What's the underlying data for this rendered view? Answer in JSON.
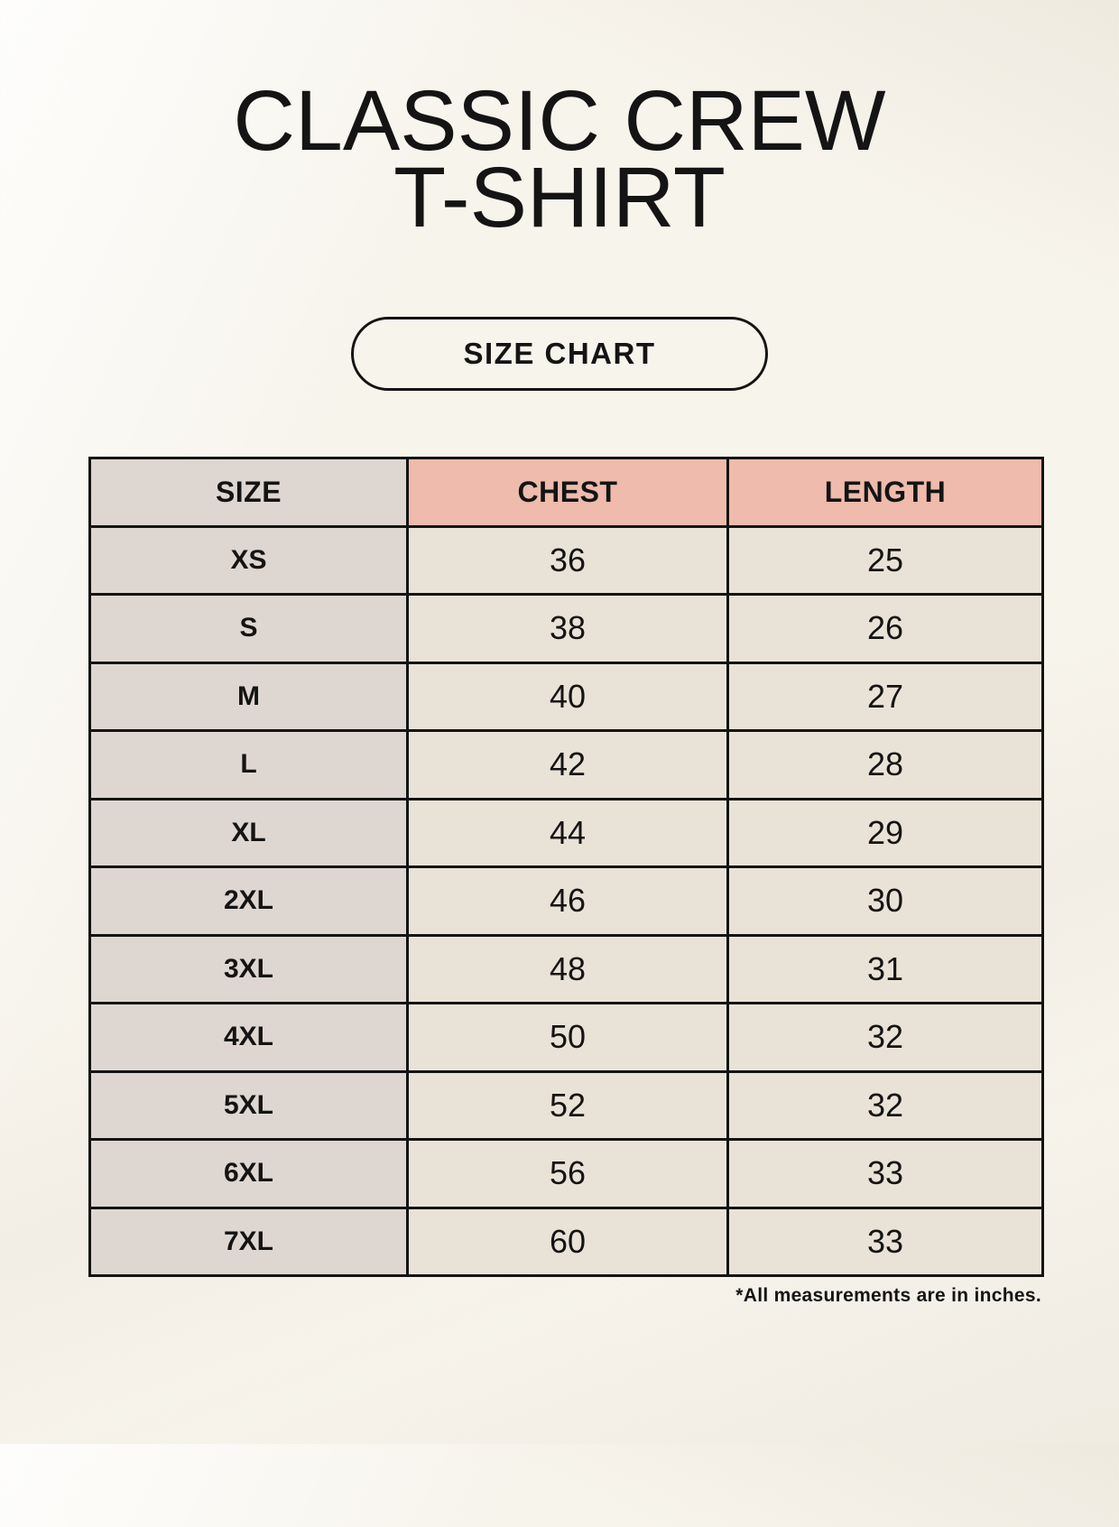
{
  "header": {
    "title_line1": "CLASSIC CREW",
    "title_line2": "T-SHIRT",
    "badge_label": "SIZE CHART"
  },
  "footnote": "*All measurements are in inches.",
  "colors": {
    "page_bg": "#f7f4ec",
    "accent_header_bg": "#eebbac",
    "size_column_bg": "#ded7d1",
    "cell_bg": "#e9e3d7",
    "border": "#141414",
    "text": "#141414"
  },
  "chart_data": {
    "type": "table",
    "units": "inches",
    "columns": [
      "SIZE",
      "CHEST",
      "LENGTH"
    ],
    "rows": [
      [
        "XS",
        36,
        25
      ],
      [
        "S",
        38,
        26
      ],
      [
        "M",
        40,
        27
      ],
      [
        "L",
        42,
        28
      ],
      [
        "XL",
        44,
        29
      ],
      [
        "2XL",
        46,
        30
      ],
      [
        "3XL",
        48,
        31
      ],
      [
        "4XL",
        50,
        32
      ],
      [
        "5XL",
        52,
        32
      ],
      [
        "6XL",
        56,
        33
      ],
      [
        "7XL",
        60,
        33
      ]
    ]
  }
}
